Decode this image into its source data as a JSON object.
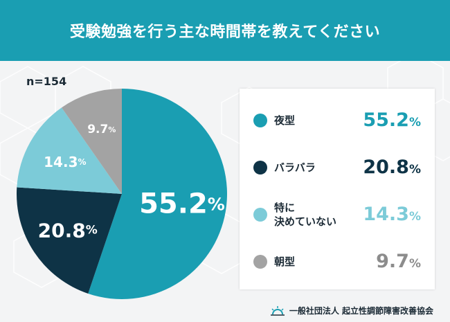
{
  "header": {
    "title": "受験勉強を行う主な時間帯を教えてください"
  },
  "sample_size": "n=154",
  "chart_data": {
    "type": "pie",
    "title": "受験勉強を行う主な時間帯を教えてください",
    "unit": "%",
    "slices": [
      {
        "name": "夜型",
        "label": "夜型",
        "value": 55.2,
        "color": "#1a9eb2"
      },
      {
        "name": "バラバラ",
        "label": "バラバラ",
        "value": 20.8,
        "color": "#0e3346"
      },
      {
        "name": "特に決めていない",
        "label": "特に\n決めていない",
        "value": 14.3,
        "color": "#7ccbd8"
      },
      {
        "name": "朝型",
        "label": "朝型",
        "value": 9.7,
        "color": "#a3a3a3"
      }
    ],
    "legend_position": "right"
  },
  "footer": {
    "organization": "一般社団法人 起立性調節障害改善協会",
    "logo_icon": "sunrise-icon"
  }
}
